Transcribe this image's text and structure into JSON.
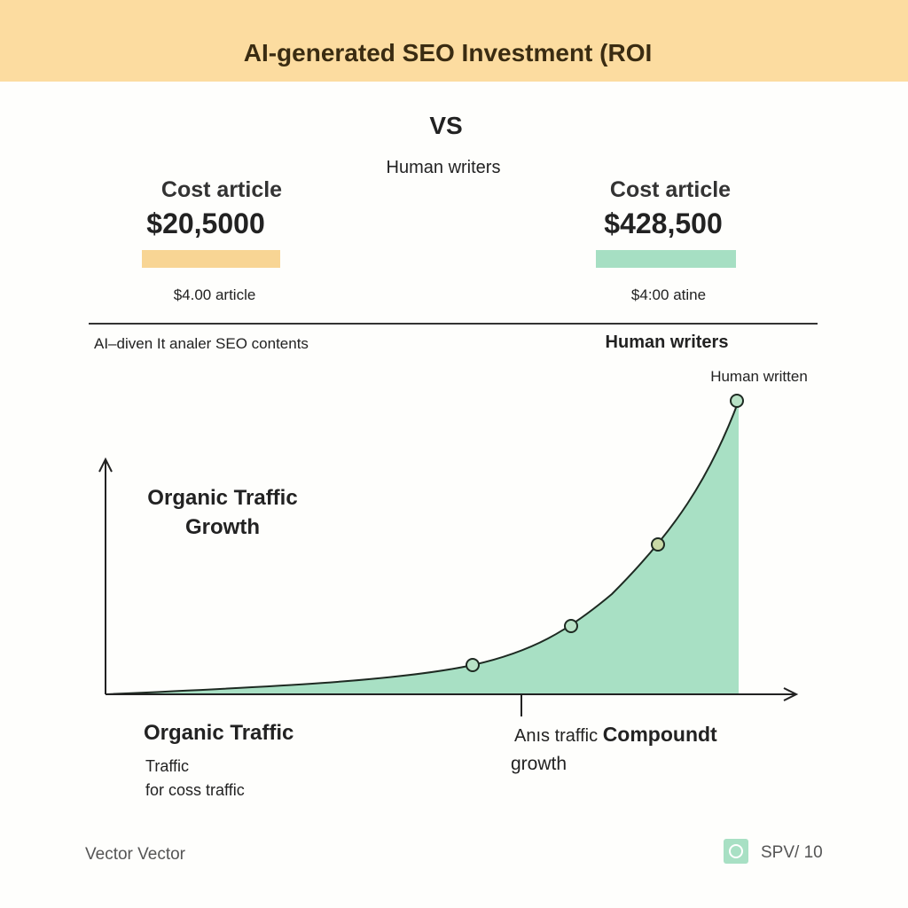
{
  "header": {
    "title": "AI-generated SEO Investment (ROI"
  },
  "vs": "VS",
  "subtitle": "Human writers",
  "left": {
    "label": "Cost article",
    "amount": "$20,5000",
    "note": "$4.00 article"
  },
  "right": {
    "label": "Cost article",
    "amount": "$428,500",
    "note": "$4:00 atine"
  },
  "section": {
    "left": "AI–diven It analer SEO contents",
    "right": "Human writers"
  },
  "chart": {
    "point_label": "Human written",
    "y_label": [
      "Organic Traffic",
      "Growth"
    ]
  },
  "bottom_left": {
    "title": "Organic Traffic",
    "lines": [
      "Traffic",
      "for coss traffic"
    ]
  },
  "bottom_right": {
    "prefix": "Anıs traffic",
    "bold": "Compoundt",
    "line2": "growth"
  },
  "footer": {
    "left": "Vector Vector",
    "right": "SPV/ 10"
  }
}
